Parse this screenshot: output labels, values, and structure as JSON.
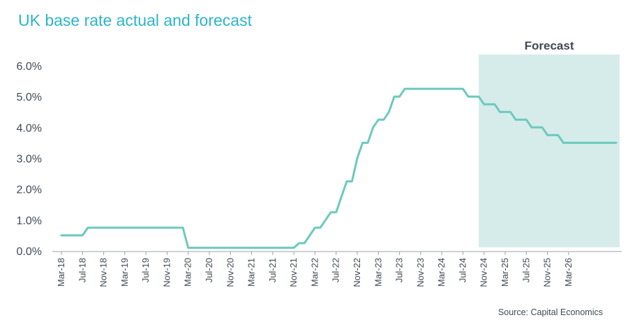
{
  "title": "UK base rate actual and forecast",
  "source": "Source: Capital Economics",
  "chart_data": {
    "type": "line",
    "title": "UK base rate actual and forecast",
    "xlabel": "",
    "ylabel": "",
    "ylim": [
      0,
      6
    ],
    "yticks": [
      "0.0%",
      "1.0%",
      "2.0%",
      "3.0%",
      "4.0%",
      "5.0%",
      "6.0%"
    ],
    "x_tick_labels": [
      "Mar-18",
      "Jul-18",
      "Nov-18",
      "Mar-19",
      "Jul-19",
      "Nov-19",
      "Mar-20",
      "Jul-20",
      "Nov-20",
      "Mar-21",
      "Jul-21",
      "Nov-21",
      "Mar-22",
      "Jul-22",
      "Nov-22",
      "Mar-23",
      "Jul-23",
      "Nov-23",
      "Mar-24",
      "Jul-24",
      "Nov-24",
      "Mar-25",
      "Jul-25",
      "Nov-25",
      "Mar-26"
    ],
    "x_start": "Mar-18",
    "x_end": "Dec-26",
    "grid": false,
    "line_color": "#6cc9bd",
    "forecast_shade_color": "#d5ecea",
    "forecast_region": {
      "start": "Oct-24",
      "end": "Dec-26",
      "label": "Forecast"
    },
    "series": [
      {
        "points": [
          [
            "Mar-18",
            0.5
          ],
          [
            "Jun-18",
            0.5
          ],
          [
            "Jul-18",
            0.5
          ],
          [
            "Aug-18",
            0.75
          ],
          [
            "Dec-19",
            0.75
          ],
          [
            "Feb-20",
            0.75
          ],
          [
            "Mar-20",
            0.1
          ],
          [
            "Nov-21",
            0.1
          ],
          [
            "Dec-21",
            0.25
          ],
          [
            "Jan-22",
            0.25
          ],
          [
            "Feb-22",
            0.5
          ],
          [
            "Mar-22",
            0.75
          ],
          [
            "Apr-22",
            0.75
          ],
          [
            "May-22",
            1.0
          ],
          [
            "Jun-22",
            1.25
          ],
          [
            "Jul-22",
            1.25
          ],
          [
            "Aug-22",
            1.75
          ],
          [
            "Sep-22",
            2.25
          ],
          [
            "Oct-22",
            2.25
          ],
          [
            "Nov-22",
            3.0
          ],
          [
            "Dec-22",
            3.5
          ],
          [
            "Jan-23",
            3.5
          ],
          [
            "Feb-23",
            4.0
          ],
          [
            "Mar-23",
            4.25
          ],
          [
            "Apr-23",
            4.25
          ],
          [
            "May-23",
            4.5
          ],
          [
            "Jun-23",
            5.0
          ],
          [
            "Jul-23",
            5.0
          ],
          [
            "Aug-23",
            5.25
          ],
          [
            "Jul-24",
            5.25
          ],
          [
            "Aug-24",
            5.0
          ],
          [
            "Sep-24",
            5.0
          ],
          [
            "Oct-24",
            5.0
          ],
          [
            "Nov-24",
            4.75
          ],
          [
            "Dec-24",
            4.75
          ],
          [
            "Jan-25",
            4.75
          ],
          [
            "Feb-25",
            4.5
          ],
          [
            "Mar-25",
            4.5
          ],
          [
            "Apr-25",
            4.5
          ],
          [
            "May-25",
            4.25
          ],
          [
            "Jun-25",
            4.25
          ],
          [
            "Jul-25",
            4.25
          ],
          [
            "Aug-25",
            4.0
          ],
          [
            "Sep-25",
            4.0
          ],
          [
            "Oct-25",
            4.0
          ],
          [
            "Nov-25",
            3.75
          ],
          [
            "Dec-25",
            3.75
          ],
          [
            "Jan-26",
            3.75
          ],
          [
            "Feb-26",
            3.5
          ],
          [
            "Dec-26",
            3.5
          ]
        ]
      }
    ]
  }
}
